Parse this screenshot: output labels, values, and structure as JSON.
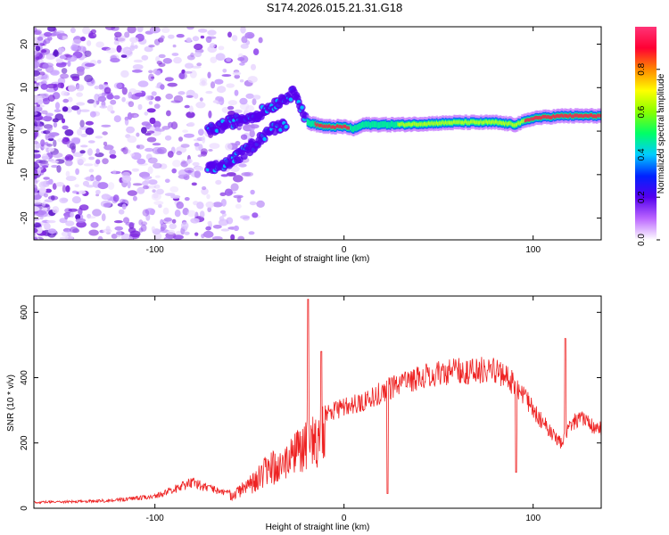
{
  "title": "S174.2026.015.21.31.G18",
  "colors": {
    "snr_line": "#ee2222",
    "track_core": "#e8334a",
    "cloud": "#7a22dd"
  },
  "chart_data": [
    {
      "type": "heatmap",
      "name": "spectrogram",
      "xlabel": "Height of straight line (km)",
      "ylabel": "Frequency (Hz)",
      "xlim": [
        -164,
        136
      ],
      "ylim": [
        -25,
        24
      ],
      "xticks": [
        -100,
        0,
        100
      ],
      "yticks": [
        -20,
        -10,
        0,
        10,
        20
      ],
      "colorbar": {
        "label": "Normalized spectral amplitude",
        "range": [
          0,
          1
        ],
        "ticks": [
          "0.0",
          "0.2",
          "0.4",
          "0.6",
          "0.8"
        ],
        "stops": [
          "#ffffff",
          "#bb66ff",
          "#5500ee",
          "#0022ff",
          "#00ccff",
          "#00ff66",
          "#88ff00",
          "#ffff00",
          "#ff8800",
          "#ff0033",
          "#ff3377"
        ]
      },
      "main_track": {
        "x": [
          -72,
          -60,
          -45,
          -30,
          -25,
          -20,
          -10,
          0,
          5,
          10,
          30,
          60,
          80,
          90,
          100,
          115,
          136
        ],
        "y": [
          0,
          2,
          4,
          8,
          9,
          2,
          1,
          1,
          0.5,
          1.5,
          1.5,
          2,
          2,
          1.5,
          3,
          3.5,
          3.5
        ]
      },
      "secondary_track": {
        "x": [
          -72,
          -60,
          -50,
          -40,
          -30
        ],
        "y": [
          -9,
          -7,
          -4,
          0,
          2
        ]
      }
    },
    {
      "type": "line",
      "name": "snr",
      "xlabel": "Height of straight line (km)",
      "ylabel": "SNR (10 * v/v)",
      "xlim": [
        -164,
        136
      ],
      "ylim": [
        0,
        650
      ],
      "xticks": [
        -100,
        0,
        100
      ],
      "yticks": [
        0,
        200,
        400,
        600
      ],
      "envelope": {
        "x": [
          -164,
          -140,
          -120,
          -100,
          -90,
          -80,
          -70,
          -60,
          -50,
          -40,
          -30,
          -25,
          -20,
          -10,
          0,
          10,
          20,
          30,
          40,
          50,
          60,
          70,
          80,
          85,
          90,
          95,
          100,
          105,
          110,
          115,
          120,
          125,
          136
        ],
        "y": [
          22,
          25,
          30,
          45,
          70,
          95,
          70,
          55,
          100,
          170,
          200,
          240,
          270,
          320,
          340,
          360,
          390,
          420,
          440,
          455,
          460,
          465,
          460,
          440,
          420,
          380,
          330,
          290,
          250,
          220,
          290,
          300,
          265
        ]
      },
      "spikes": [
        {
          "x": -19,
          "y": 640
        },
        {
          "x": -12,
          "y": 480
        },
        {
          "x": 23,
          "y": 45
        },
        {
          "x": 91,
          "y": 110
        },
        {
          "x": 117,
          "y": 520
        }
      ]
    }
  ]
}
